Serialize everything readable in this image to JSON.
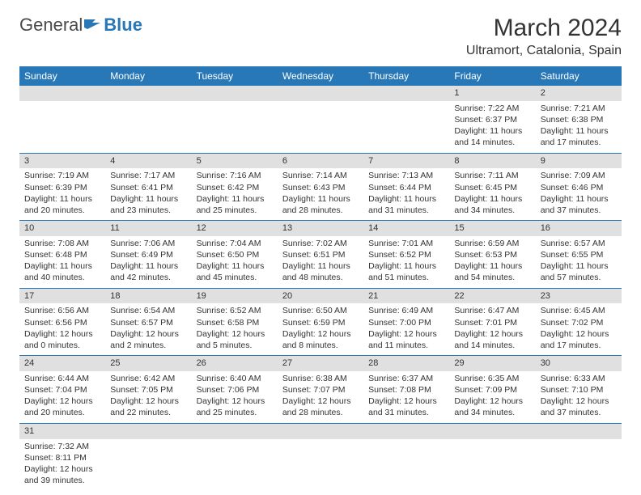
{
  "logo": {
    "general": "General",
    "blue": "Blue"
  },
  "title": "March 2024",
  "location": "Ultramort, Catalonia, Spain",
  "colors": {
    "header_bg": "#2878b8",
    "header_text": "#ffffff",
    "daynum_bg": "#e0e0e0",
    "border": "#2878b8"
  },
  "weekdays": [
    "Sunday",
    "Monday",
    "Tuesday",
    "Wednesday",
    "Thursday",
    "Friday",
    "Saturday"
  ],
  "weeks": [
    [
      null,
      null,
      null,
      null,
      null,
      {
        "n": "1",
        "sr": "Sunrise: 7:22 AM",
        "ss": "Sunset: 6:37 PM",
        "dl": "Daylight: 11 hours and 14 minutes."
      },
      {
        "n": "2",
        "sr": "Sunrise: 7:21 AM",
        "ss": "Sunset: 6:38 PM",
        "dl": "Daylight: 11 hours and 17 minutes."
      }
    ],
    [
      {
        "n": "3",
        "sr": "Sunrise: 7:19 AM",
        "ss": "Sunset: 6:39 PM",
        "dl": "Daylight: 11 hours and 20 minutes."
      },
      {
        "n": "4",
        "sr": "Sunrise: 7:17 AM",
        "ss": "Sunset: 6:41 PM",
        "dl": "Daylight: 11 hours and 23 minutes."
      },
      {
        "n": "5",
        "sr": "Sunrise: 7:16 AM",
        "ss": "Sunset: 6:42 PM",
        "dl": "Daylight: 11 hours and 25 minutes."
      },
      {
        "n": "6",
        "sr": "Sunrise: 7:14 AM",
        "ss": "Sunset: 6:43 PM",
        "dl": "Daylight: 11 hours and 28 minutes."
      },
      {
        "n": "7",
        "sr": "Sunrise: 7:13 AM",
        "ss": "Sunset: 6:44 PM",
        "dl": "Daylight: 11 hours and 31 minutes."
      },
      {
        "n": "8",
        "sr": "Sunrise: 7:11 AM",
        "ss": "Sunset: 6:45 PM",
        "dl": "Daylight: 11 hours and 34 minutes."
      },
      {
        "n": "9",
        "sr": "Sunrise: 7:09 AM",
        "ss": "Sunset: 6:46 PM",
        "dl": "Daylight: 11 hours and 37 minutes."
      }
    ],
    [
      {
        "n": "10",
        "sr": "Sunrise: 7:08 AM",
        "ss": "Sunset: 6:48 PM",
        "dl": "Daylight: 11 hours and 40 minutes."
      },
      {
        "n": "11",
        "sr": "Sunrise: 7:06 AM",
        "ss": "Sunset: 6:49 PM",
        "dl": "Daylight: 11 hours and 42 minutes."
      },
      {
        "n": "12",
        "sr": "Sunrise: 7:04 AM",
        "ss": "Sunset: 6:50 PM",
        "dl": "Daylight: 11 hours and 45 minutes."
      },
      {
        "n": "13",
        "sr": "Sunrise: 7:02 AM",
        "ss": "Sunset: 6:51 PM",
        "dl": "Daylight: 11 hours and 48 minutes."
      },
      {
        "n": "14",
        "sr": "Sunrise: 7:01 AM",
        "ss": "Sunset: 6:52 PM",
        "dl": "Daylight: 11 hours and 51 minutes."
      },
      {
        "n": "15",
        "sr": "Sunrise: 6:59 AM",
        "ss": "Sunset: 6:53 PM",
        "dl": "Daylight: 11 hours and 54 minutes."
      },
      {
        "n": "16",
        "sr": "Sunrise: 6:57 AM",
        "ss": "Sunset: 6:55 PM",
        "dl": "Daylight: 11 hours and 57 minutes."
      }
    ],
    [
      {
        "n": "17",
        "sr": "Sunrise: 6:56 AM",
        "ss": "Sunset: 6:56 PM",
        "dl": "Daylight: 12 hours and 0 minutes."
      },
      {
        "n": "18",
        "sr": "Sunrise: 6:54 AM",
        "ss": "Sunset: 6:57 PM",
        "dl": "Daylight: 12 hours and 2 minutes."
      },
      {
        "n": "19",
        "sr": "Sunrise: 6:52 AM",
        "ss": "Sunset: 6:58 PM",
        "dl": "Daylight: 12 hours and 5 minutes."
      },
      {
        "n": "20",
        "sr": "Sunrise: 6:50 AM",
        "ss": "Sunset: 6:59 PM",
        "dl": "Daylight: 12 hours and 8 minutes."
      },
      {
        "n": "21",
        "sr": "Sunrise: 6:49 AM",
        "ss": "Sunset: 7:00 PM",
        "dl": "Daylight: 12 hours and 11 minutes."
      },
      {
        "n": "22",
        "sr": "Sunrise: 6:47 AM",
        "ss": "Sunset: 7:01 PM",
        "dl": "Daylight: 12 hours and 14 minutes."
      },
      {
        "n": "23",
        "sr": "Sunrise: 6:45 AM",
        "ss": "Sunset: 7:02 PM",
        "dl": "Daylight: 12 hours and 17 minutes."
      }
    ],
    [
      {
        "n": "24",
        "sr": "Sunrise: 6:44 AM",
        "ss": "Sunset: 7:04 PM",
        "dl": "Daylight: 12 hours and 20 minutes."
      },
      {
        "n": "25",
        "sr": "Sunrise: 6:42 AM",
        "ss": "Sunset: 7:05 PM",
        "dl": "Daylight: 12 hours and 22 minutes."
      },
      {
        "n": "26",
        "sr": "Sunrise: 6:40 AM",
        "ss": "Sunset: 7:06 PM",
        "dl": "Daylight: 12 hours and 25 minutes."
      },
      {
        "n": "27",
        "sr": "Sunrise: 6:38 AM",
        "ss": "Sunset: 7:07 PM",
        "dl": "Daylight: 12 hours and 28 minutes."
      },
      {
        "n": "28",
        "sr": "Sunrise: 6:37 AM",
        "ss": "Sunset: 7:08 PM",
        "dl": "Daylight: 12 hours and 31 minutes."
      },
      {
        "n": "29",
        "sr": "Sunrise: 6:35 AM",
        "ss": "Sunset: 7:09 PM",
        "dl": "Daylight: 12 hours and 34 minutes."
      },
      {
        "n": "30",
        "sr": "Sunrise: 6:33 AM",
        "ss": "Sunset: 7:10 PM",
        "dl": "Daylight: 12 hours and 37 minutes."
      }
    ],
    [
      {
        "n": "31",
        "sr": "Sunrise: 7:32 AM",
        "ss": "Sunset: 8:11 PM",
        "dl": "Daylight: 12 hours and 39 minutes."
      },
      null,
      null,
      null,
      null,
      null,
      null
    ]
  ]
}
